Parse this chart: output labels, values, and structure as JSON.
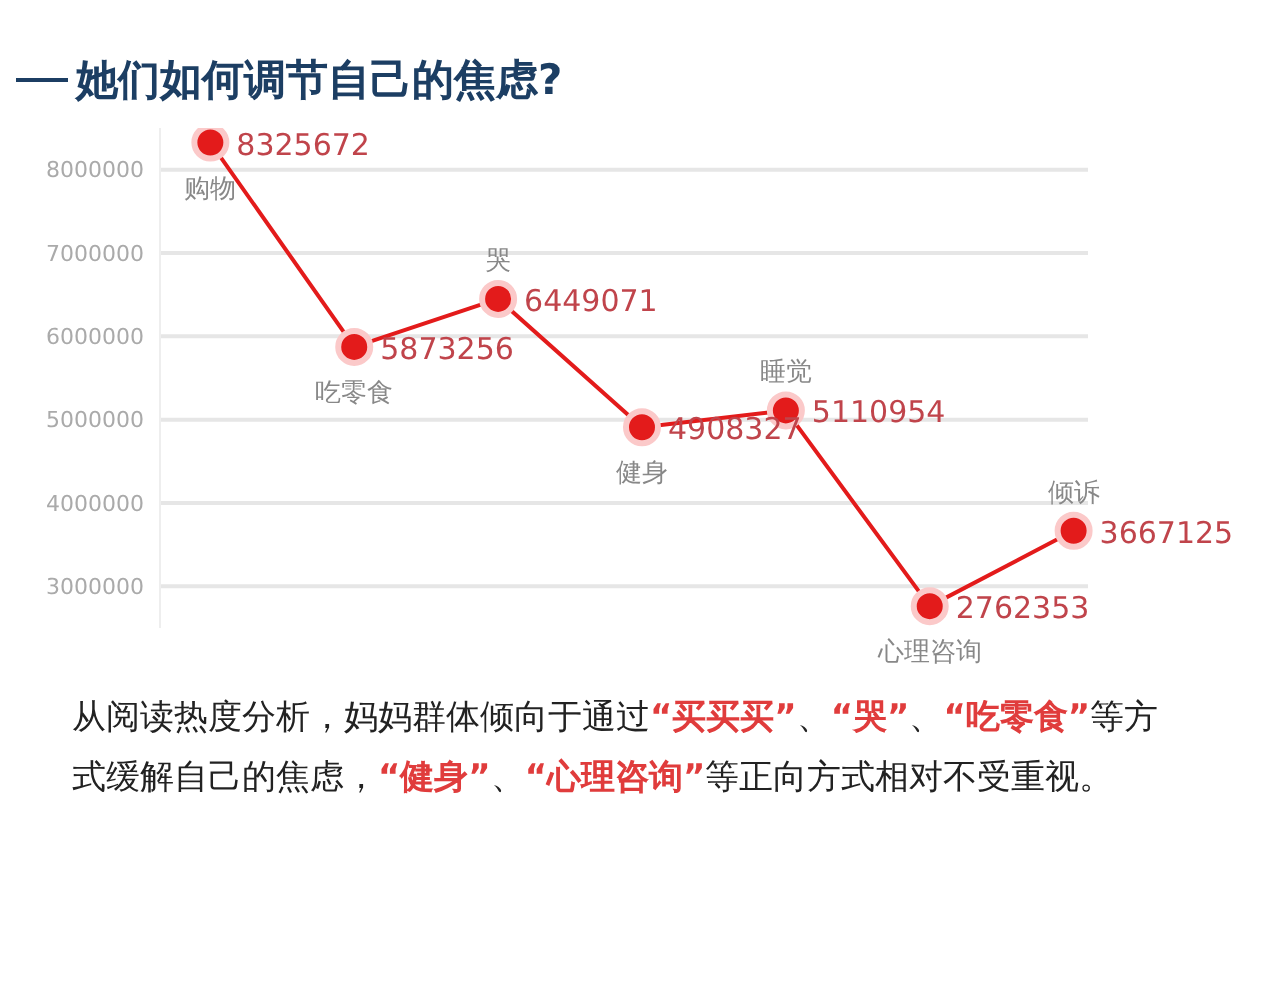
{
  "chart_data": {
    "type": "line",
    "title": "她们如何调节自己的焦虑?",
    "categories": [
      "购物",
      "吃零食",
      "哭",
      "健身",
      "睡觉",
      "心理咨询",
      "倾诉"
    ],
    "series": [
      {
        "color": "#e31b1b",
        "values": [
          8325672,
          5873256,
          6449071,
          4908327,
          5110954,
          2762353,
          3667125
        ]
      }
    ],
    "ylim": [
      2500000,
      8500000
    ],
    "yticks": [
      3000000,
      4000000,
      5000000,
      6000000,
      7000000,
      8000000
    ],
    "tick_labels": "y",
    "grid": "y",
    "legend": false,
    "marker": "circle",
    "line_style": "solid",
    "data_labels": true,
    "annotations": [
      "从阅读热度分析，妈妈群体倾向于通过“买买买”、“哭”、“吃零食”等方式缓解自己的焦虑，“健身”、“心理咨询”等正向方式相对不受重视。"
    ]
  }
}
